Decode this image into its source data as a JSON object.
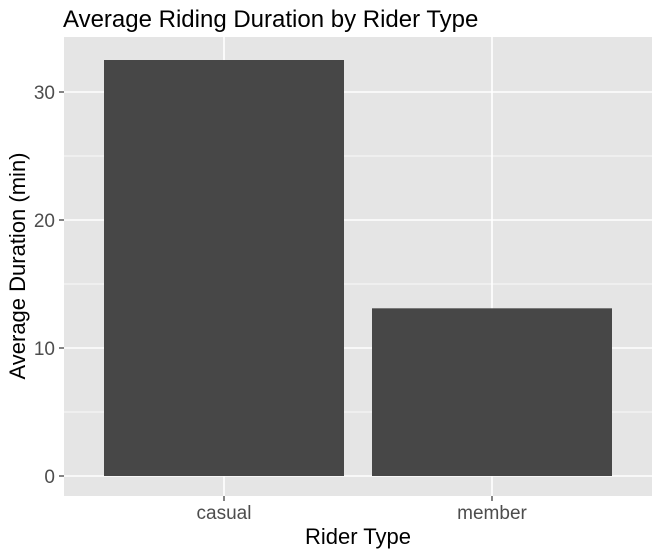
{
  "chart_data": {
    "type": "bar",
    "title": "Average Riding Duration by Rider Type",
    "xlabel": "Rider Type",
    "ylabel": "Average Duration (min)",
    "categories": [
      "casual",
      "member"
    ],
    "values": [
      32.5,
      13.1
    ],
    "ylim": [
      0,
      34
    ],
    "yticks": [
      0,
      10,
      20,
      30
    ],
    "grid": true,
    "colors": {
      "bar": "#474747",
      "panel": "#e5e5e5",
      "grid": "#ffffff",
      "tick_label": "#4d4d4d"
    }
  }
}
